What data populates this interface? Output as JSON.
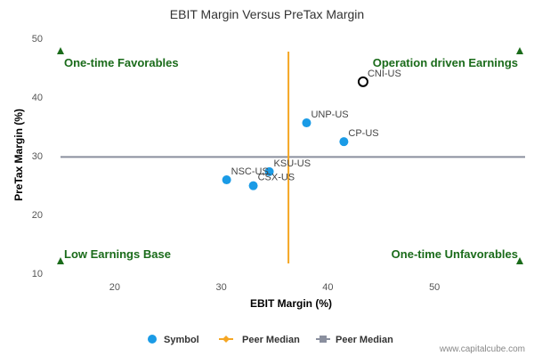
{
  "chart_data": {
    "type": "scatter",
    "title": "EBIT Margin Versus PreTax Margin",
    "xlabel": "EBIT Margin (%)",
    "ylabel": "PreTax Margin (%)",
    "xlim": [
      14.5,
      58.5
    ],
    "ylim": [
      10,
      50
    ],
    "xticks": [
      20,
      30,
      40,
      50
    ],
    "yticks": [
      10,
      20,
      30,
      40,
      50
    ],
    "points": [
      {
        "label": "CNI-US",
        "x": 43.3,
        "y": 42.6,
        "highlight": true
      },
      {
        "label": "UNP-US",
        "x": 38.0,
        "y": 35.6,
        "highlight": false
      },
      {
        "label": "CP-US",
        "x": 41.5,
        "y": 32.4,
        "highlight": false
      },
      {
        "label": "KSU-US",
        "x": 34.5,
        "y": 27.3,
        "highlight": false
      },
      {
        "label": "NSC-US",
        "x": 30.5,
        "y": 25.9,
        "highlight": false
      },
      {
        "label": "CSX-US",
        "x": 33.0,
        "y": 24.9,
        "highlight": false
      }
    ],
    "peer_median_x": 36.3,
    "peer_median_y": 29.8,
    "quadrants": {
      "top_left": "One-time Favorables",
      "top_right": "Operation driven Earnings",
      "bottom_left": "Low Earnings Base",
      "bottom_right": "One-time Unfavorables"
    },
    "legend": [
      {
        "label": "Symbol",
        "color": "#1a9be6",
        "marker": "circle"
      },
      {
        "label": "Peer Median",
        "color": "#f5a623",
        "marker": "diamond-line"
      },
      {
        "label": "Peer Median",
        "color": "#8a8f9e",
        "marker": "square-line"
      }
    ],
    "legend_position": "bottom",
    "colors": {
      "point": "#1a9be6",
      "highlight_stroke": "#000000",
      "median_x_line": "#f5a623",
      "median_y_line": "#8a8f9e",
      "quadrant": "#1a6b1a"
    },
    "credit": "www.capitalcube.com"
  }
}
